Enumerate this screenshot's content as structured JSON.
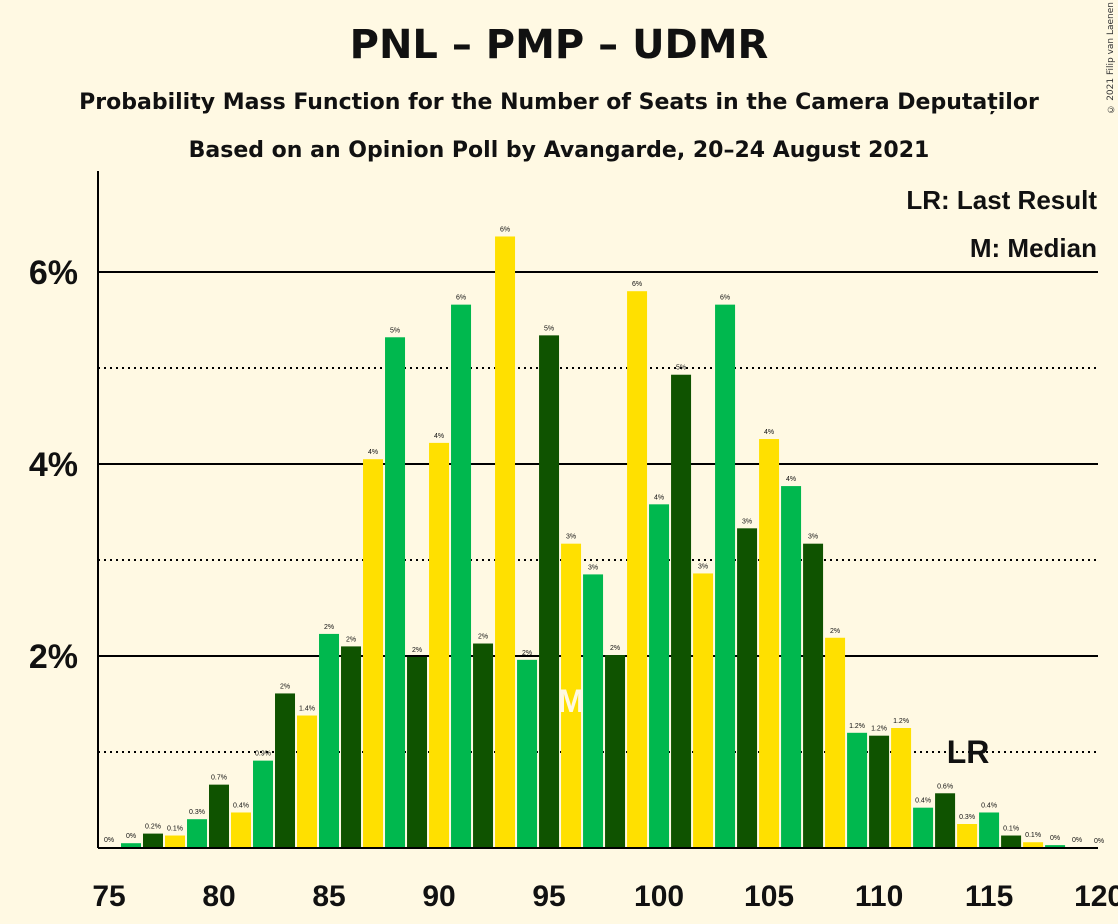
{
  "title": "PNL – PMP – UDMR",
  "subtitle": "Probability Mass Function for the Number of Seats in the Camera Deputaților",
  "subtitle2": "Based on an Opinion Poll by Avangarde, 20–24 August 2021",
  "copyright": "© 2021 Filip van Laenen",
  "legend": {
    "lr": "LR: Last Result",
    "m": "M: Median"
  },
  "markers": {
    "lr_label": "LR",
    "lr_x": 114,
    "m_label": "M",
    "m_x": 96
  },
  "colors": {
    "green": "#00B84E",
    "dark": "#0F5300",
    "yellow": "#FFE000",
    "bg": "#FFF9E3"
  },
  "chart_data": {
    "type": "bar",
    "x": [
      76,
      77,
      78,
      79,
      80,
      81,
      82,
      83,
      84,
      85,
      86,
      87,
      88,
      89,
      90,
      91,
      92,
      93,
      94,
      95,
      96,
      97,
      98,
      99,
      100,
      101,
      102,
      103,
      104,
      105,
      106,
      107,
      108,
      109,
      110,
      111,
      112,
      113,
      114,
      115,
      116,
      117,
      118,
      119,
      120
    ],
    "values": [
      0.05,
      0.15,
      0.13,
      0.3,
      0.66,
      0.37,
      0.91,
      1.61,
      1.38,
      2.23,
      2.1,
      4.05,
      5.32,
      1.99,
      4.22,
      5.66,
      2.13,
      6.37,
      1.96,
      5.34,
      3.17,
      2.85,
      2.01,
      5.8,
      3.58,
      4.93,
      2.86,
      5.66,
      3.33,
      4.26,
      3.77,
      3.17,
      2.19,
      1.2,
      1.17,
      1.25,
      0.42,
      0.57,
      0.25,
      0.37,
      0.13,
      0.06,
      0.03,
      0.01,
      0.0
    ],
    "labels": [
      "0%",
      "0.2%",
      "0.1%",
      "0.3%",
      "0.7%",
      "0.4%",
      "0.9%",
      "2%",
      "1.4%",
      "2%",
      "2%",
      "4%",
      "5%",
      "2%",
      "4%",
      "6%",
      "2%",
      "6%",
      "2%",
      "5%",
      "3%",
      "3%",
      "2%",
      "6%",
      "4%",
      "5%",
      "3%",
      "6%",
      "3%",
      "4%",
      "4%",
      "3%",
      "2%",
      "1.2%",
      "1.2%",
      "1.2%",
      "0.4%",
      "0.6%",
      "0.3%",
      "0.4%",
      "0.1%",
      "0.1%",
      "0%",
      "0%",
      "0%"
    ],
    "extra_label": {
      "x": 75,
      "text": "0%"
    },
    "xlim": [
      75,
      120
    ],
    "ylim": [
      0,
      7
    ],
    "xticks": [
      "75",
      "80",
      "85",
      "90",
      "95",
      "100",
      "105",
      "110",
      "115",
      "120"
    ],
    "yticks": [
      "2%",
      "4%",
      "6%"
    ],
    "solid_gridlines": [
      2,
      4,
      6
    ],
    "dotted_gridlines": [
      1,
      3,
      5
    ]
  }
}
